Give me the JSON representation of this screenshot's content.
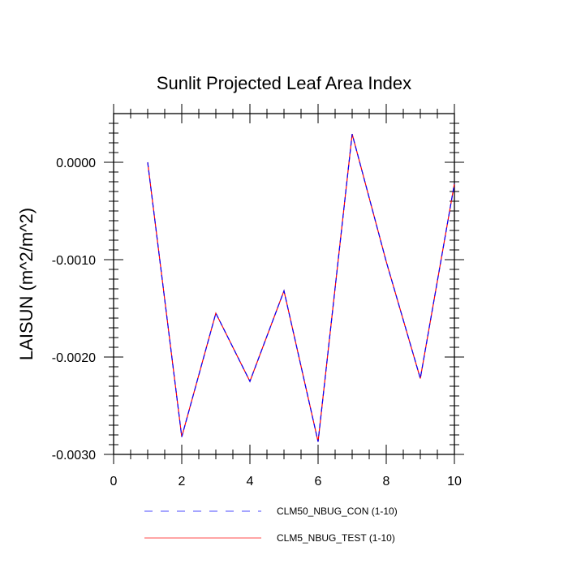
{
  "chart_data": {
    "type": "line",
    "title": "Sunlit Projected Leaf Area Index",
    "xlabel": "",
    "ylabel": "LAISUN  (m^2/m^2)",
    "xlim": [
      0,
      10
    ],
    "ylim": [
      -0.003,
      0.0005
    ],
    "x_ticks": [
      0,
      2,
      4,
      6,
      8,
      10
    ],
    "x_tick_labels": [
      "0",
      "2",
      "4",
      "6",
      "8",
      "10"
    ],
    "y_ticks": [
      0.0,
      -0.001,
      -0.002,
      -0.003
    ],
    "y_tick_labels": [
      "0.0000",
      "-0.0010",
      "-0.0020",
      "-0.0030"
    ],
    "grid": false,
    "legend_position": "bottom",
    "x": [
      1,
      2,
      3,
      4,
      5,
      6,
      7,
      8,
      9,
      10
    ],
    "series": [
      {
        "name": "CLM50_NBUG_CON (1-10)",
        "color": "#0000ff",
        "style": "dashed",
        "values": [
          0.0,
          -0.00282,
          -0.00155,
          -0.00225,
          -0.00132,
          -0.00287,
          0.00029,
          -0.00102,
          -0.00222,
          -0.00022
        ]
      },
      {
        "name": "CLM5_NBUG_TEST (1-10)",
        "color": "#ff0000",
        "style": "solid",
        "values": [
          0.0,
          -0.00282,
          -0.00155,
          -0.00225,
          -0.00132,
          -0.00287,
          0.00029,
          -0.00102,
          -0.00222,
          -0.00022
        ]
      }
    ]
  }
}
